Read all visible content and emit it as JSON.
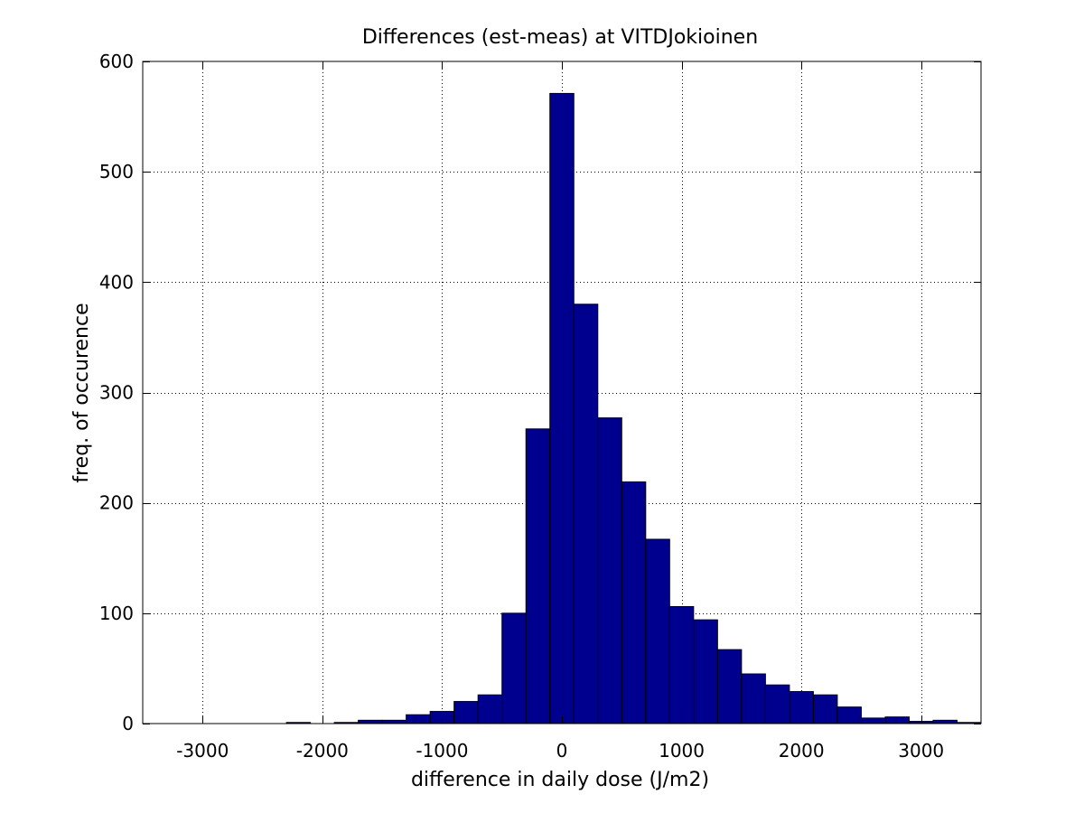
{
  "chart_data": {
    "type": "bar",
    "title": "Differences (est-meas) at VITDJokioinen",
    "xlabel": "difference in daily dose (J/m2)",
    "ylabel": "freq. of occurence",
    "xlim": [
      -3500,
      3500
    ],
    "ylim": [
      0,
      600
    ],
    "xticks": [
      -3000,
      -2000,
      -1000,
      0,
      1000,
      2000,
      3000
    ],
    "xtick_labels": [
      "-3000",
      "-2000",
      "-1000",
      "0",
      "1000",
      "2000",
      "3000"
    ],
    "yticks": [
      0,
      100,
      200,
      300,
      400,
      500,
      600
    ],
    "ytick_labels": [
      "0",
      "100",
      "200",
      "300",
      "400",
      "500",
      "600"
    ],
    "grid": true,
    "bin_width": 200,
    "bin_centers": [
      -3400,
      -3200,
      -3000,
      -2800,
      -2600,
      -2400,
      -2200,
      -2000,
      -1800,
      -1600,
      -1400,
      -1200,
      -1000,
      -800,
      -600,
      -400,
      -200,
      0,
      200,
      400,
      600,
      800,
      1000,
      1200,
      1400,
      1600,
      1800,
      2000,
      2200,
      2400,
      2600,
      2800,
      3000,
      3200,
      3400
    ],
    "values": [
      0,
      0,
      0,
      0,
      0,
      0,
      1,
      0,
      1,
      3,
      3,
      8,
      11,
      20,
      26,
      100,
      267,
      571,
      380,
      277,
      219,
      167,
      106,
      94,
      67,
      45,
      35,
      29,
      26,
      15,
      5,
      6,
      2,
      3,
      1
    ],
    "bar_color": "#00008F",
    "edge_color": "#000000"
  }
}
